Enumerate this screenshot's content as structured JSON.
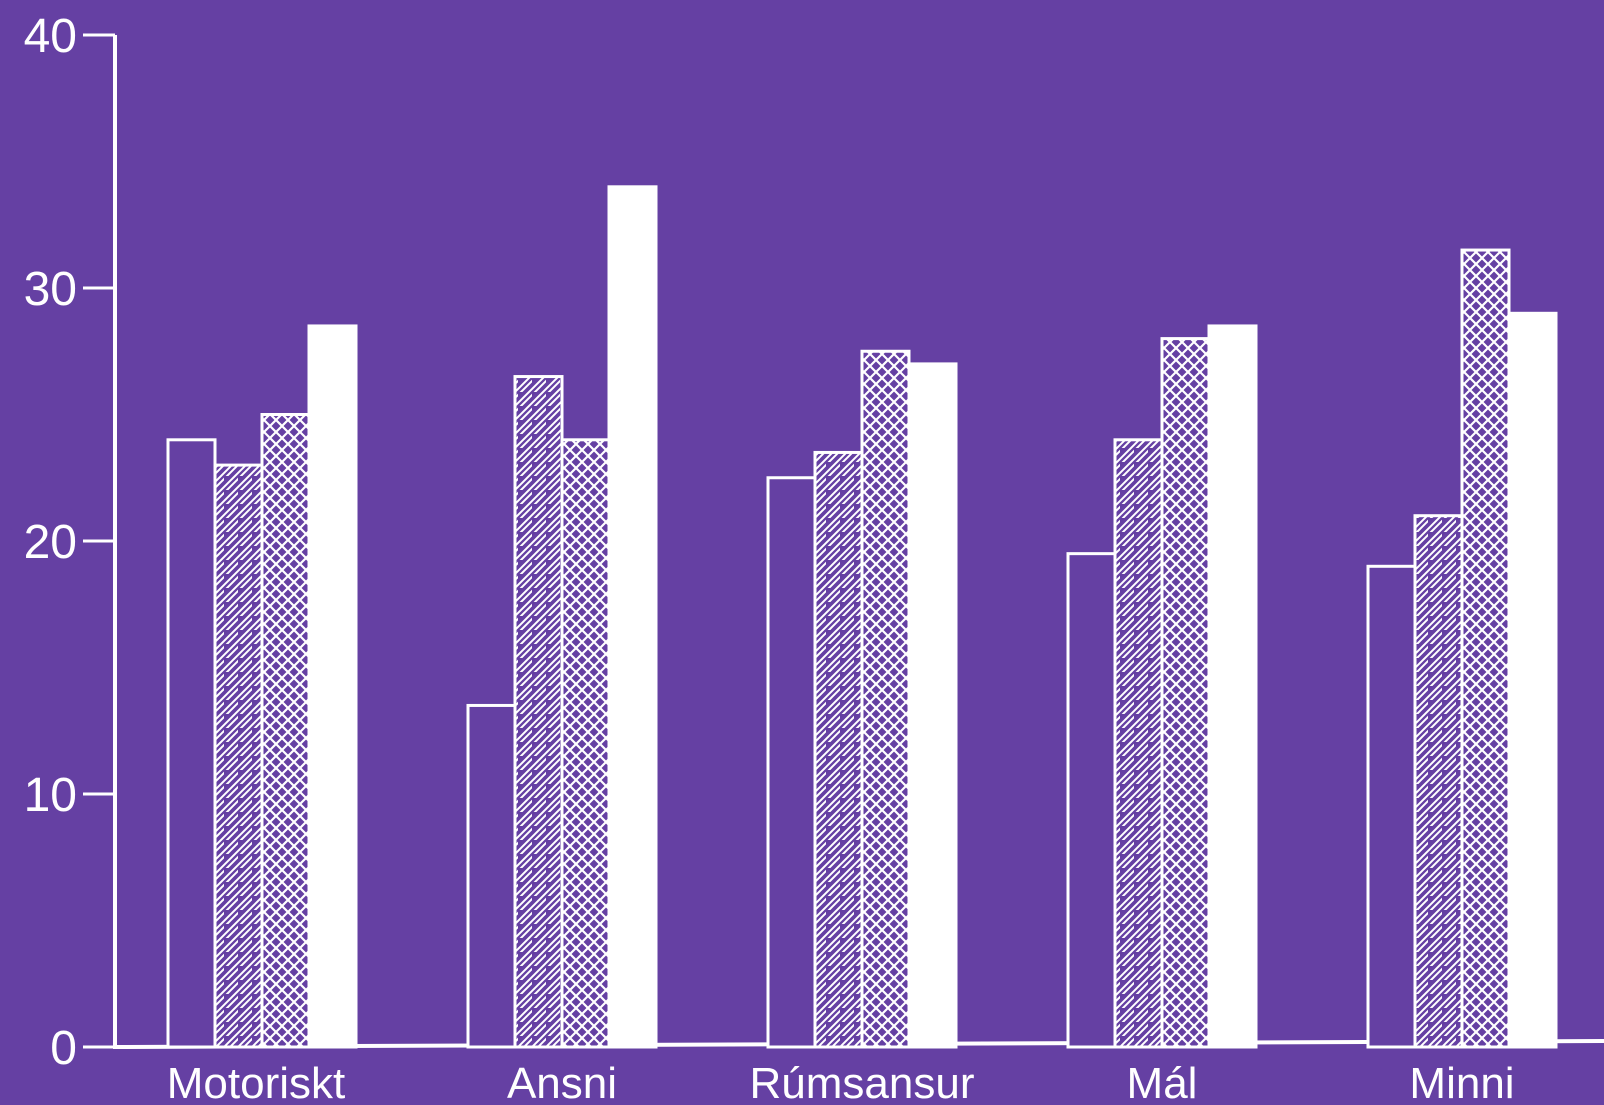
{
  "colors": {
    "background": "#6540a3",
    "foreground": "#ffffff"
  },
  "chart_data": {
    "type": "bar",
    "title": "",
    "xlabel": "",
    "ylabel": "",
    "ylim": [
      0,
      40
    ],
    "yticks": [
      0,
      10,
      20,
      30,
      40
    ],
    "ytick_labels": [
      "0",
      "10",
      "20",
      "30",
      "40"
    ],
    "grid": false,
    "legend": "none",
    "categories": [
      "Motoriskt",
      "Ansni",
      "Rúmsansur",
      "Mál",
      "Minni"
    ],
    "series": [
      {
        "pattern": "outline",
        "values": [
          24.0,
          13.5,
          22.5,
          19.5,
          19.0
        ]
      },
      {
        "pattern": "diagonal-hatch",
        "values": [
          23.0,
          26.5,
          23.5,
          24.0,
          21.0
        ]
      },
      {
        "pattern": "cross-hatch",
        "values": [
          25.0,
          24.0,
          27.5,
          28.0,
          31.5
        ]
      },
      {
        "pattern": "solid",
        "values": [
          28.5,
          34.0,
          27.0,
          28.5,
          29.0
        ]
      }
    ]
  }
}
